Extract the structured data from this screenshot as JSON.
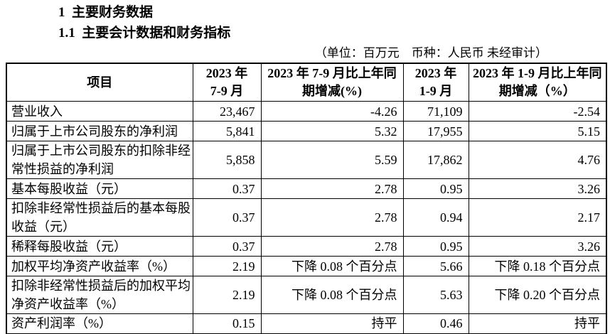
{
  "page": {
    "heading1": "1  主要财务数据",
    "heading2": "1.1  主要会计数据和财务指标",
    "unit_note": "（单位：百万元　币种：人民币 未经审计）"
  },
  "table": {
    "headers": {
      "item": "项目",
      "q3_line1": "2023 年",
      "q3_line2": "7-9 月",
      "q3_change_line1": "2023 年 7-9 月比上年同",
      "q3_change_line2": "期增减(%)",
      "ytd_line1": "2023 年",
      "ytd_line2": "1-9 月",
      "ytd_change_line1": "2023 年 1-9 月比上年同",
      "ytd_change_line2": "期增减（%）"
    },
    "rows": [
      {
        "item": "营业收入",
        "q3": "23,467",
        "q3_change": "-4.26",
        "ytd": "71,109",
        "ytd_change": "-2.54"
      },
      {
        "item": "归属于上市公司股东的净利润",
        "q3": "5,841",
        "q3_change": "5.32",
        "ytd": "17,955",
        "ytd_change": "5.15"
      },
      {
        "item": "归属于上市公司股东的扣除非经常性损益的净利润",
        "q3": "5,858",
        "q3_change": "5.59",
        "ytd": "17,862",
        "ytd_change": "4.76"
      },
      {
        "item": "基本每股收益（元）",
        "q3": "0.37",
        "q3_change": "2.78",
        "ytd": "0.95",
        "ytd_change": "3.26"
      },
      {
        "item": "扣除非经常性损益后的基本每股收益（元）",
        "q3": "0.37",
        "q3_change": "2.78",
        "ytd": "0.94",
        "ytd_change": "2.17"
      },
      {
        "item": "稀释每股收益（元）",
        "q3": "0.37",
        "q3_change": "2.78",
        "ytd": "0.95",
        "ytd_change": "3.26"
      },
      {
        "item": "加权平均净资产收益率（%）",
        "q3": "2.19",
        "q3_change": "下降 0.08 个百分点",
        "ytd": "5.66",
        "ytd_change": "下降 0.18 个百分点"
      },
      {
        "item": "扣除非经常性损益后的加权平均净资产收益率（%）",
        "q3": "2.19",
        "q3_change": "下降 0.08 个百分点",
        "ytd": "5.63",
        "ytd_change": "下降 0.20 个百分点"
      },
      {
        "item": "资产利润率（%）",
        "q3": "0.15",
        "q3_change": "持平",
        "ytd": "0.46",
        "ytd_change": "持平"
      }
    ]
  }
}
